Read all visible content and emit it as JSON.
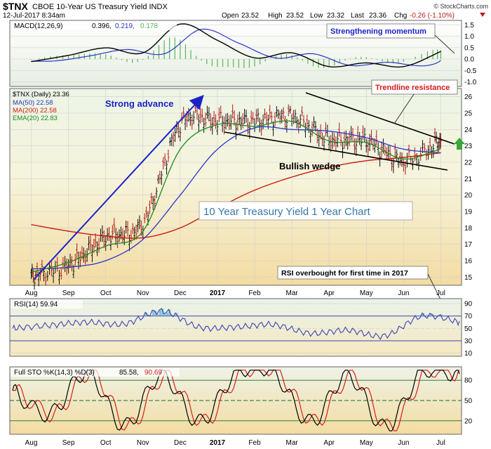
{
  "header": {
    "symbol": "$TNX",
    "name": "CBOE 10-Year US Treasury Yield INDX",
    "date": "12-Jul-2017 8:34am",
    "open_label": "Open",
    "open": "23.52",
    "high_label": "High",
    "high": "23.52",
    "low_label": "Low",
    "low": "23.32",
    "last_label": "Last",
    "last": "23.36",
    "chg_label": "Chg",
    "chg": "-0.26 (-1.10%)",
    "watermark": "© StockCharts.com"
  },
  "colors": {
    "price_bar": "#111111",
    "ma50": "#2a35c8",
    "ma200": "#c81e14",
    "ema20": "#1f8a1f",
    "macd_line": "#000000",
    "signal_line": "#2a35c8",
    "histogram": "#57b557",
    "rsi": "#3d43b8",
    "stoch_k": "#000000",
    "stoch_d": "#d4201a",
    "annotation_blue": "#1a22c8",
    "annotation_red": "#d41a1a",
    "up_arrow": "#3aa83a"
  },
  "macd": {
    "legend_name": "MACD(12,26,9)",
    "legend_macd": "0.396,",
    "legend_signal": "0.219,",
    "legend_hist": "0.178",
    "ticks": [
      "1.5",
      "1.0",
      "0.5",
      "0.0",
      "-0.5",
      "-1.0"
    ],
    "annotation": "Strengthening momentum"
  },
  "price": {
    "legend_title": "$TNX (Daily) 23.36",
    "legend_ma50": "MA(50) 22.58",
    "legend_ma200": "MA(200) 22.58",
    "legend_ema20": "EMA(20) 22.83",
    "ticks": [
      "26",
      "25",
      "24",
      "23",
      "22",
      "21",
      "20",
      "19",
      "18",
      "17",
      "16",
      "15"
    ],
    "title_box": "10 Year Treasury Yield 1 Year Chart",
    "annotation_advance": "Strong advance",
    "annotation_resistance": "Trendline resistance",
    "annotation_wedge": "Bullish wedge",
    "annotation_rsi_overbought": "RSI overbought for first time in 2017",
    "x_labels": [
      "Aug",
      "Sep",
      "Oct",
      "Nov",
      "Dec",
      "2017",
      "Feb",
      "Mar",
      "Apr",
      "May",
      "Jun",
      "Jul"
    ]
  },
  "rsi": {
    "legend": "RSI(14) 59.94",
    "ticks": [
      "90",
      "70",
      "50",
      "30",
      "10"
    ]
  },
  "stoch": {
    "legend_name": "Full STO %K(14,3) %D(3)",
    "legend_k": "85.58,",
    "legend_d": "90.69",
    "ticks": [
      "80",
      "50",
      "20"
    ],
    "x_labels": [
      "Aug",
      "Sep",
      "Oct",
      "Nov",
      "Dec",
      "2017",
      "Feb",
      "Mar",
      "Apr",
      "May",
      "Jun",
      "Jul"
    ]
  },
  "chart_data": {
    "type": "line",
    "x": [
      "Aug",
      "Sep",
      "Oct",
      "Nov",
      "Dec",
      "2017",
      "Feb",
      "Mar",
      "Apr",
      "May",
      "Jun",
      "Jul"
    ],
    "ylim": [
      14.5,
      26.5
    ],
    "series": [
      {
        "name": "$TNX (Daily)",
        "values": [
          15.1,
          15.7,
          17.4,
          18.3,
          24.3,
          24.5,
          24.5,
          24.8,
          23.4,
          23.3,
          22.1,
          23.36
        ]
      },
      {
        "name": "MA(50)",
        "values": [
          15.5,
          15.6,
          16.0,
          17.3,
          20.0,
          22.8,
          24.1,
          24.0,
          23.9,
          23.5,
          22.8,
          22.58
        ]
      },
      {
        "name": "MA(200)",
        "values": [
          18.2,
          17.8,
          17.5,
          17.4,
          18.0,
          19.2,
          20.3,
          21.1,
          21.7,
          22.1,
          22.3,
          22.58
        ]
      },
      {
        "name": "EMA(20)",
        "values": [
          15.3,
          15.9,
          16.9,
          17.8,
          22.8,
          24.3,
          24.2,
          24.5,
          23.3,
          23.2,
          22.2,
          22.83
        ]
      }
    ],
    "rsi_values": [
      50,
      55,
      60,
      57,
      78,
      52,
      52,
      56,
      42,
      47,
      38,
      70,
      59.94
    ],
    "stoch_k": [
      65,
      30,
      92,
      12,
      88,
      18,
      90,
      92,
      18,
      88,
      10,
      92,
      85.58
    ],
    "stoch_d": [
      60,
      35,
      88,
      15,
      86,
      20,
      88,
      90,
      20,
      85,
      12,
      90,
      90.69
    ]
  }
}
